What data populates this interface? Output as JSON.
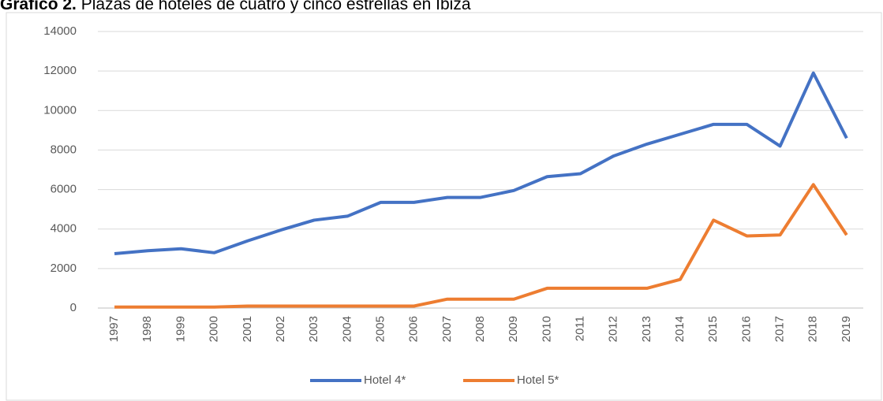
{
  "chart_data": {
    "type": "line",
    "title_prefix": "Gráfico 2.",
    "title": "Plazas de hoteles de cuatro y cinco estrellas en Ibiza",
    "categories": [
      "1997",
      "1998",
      "1999",
      "2000",
      "2001",
      "2002",
      "2003",
      "2004",
      "2005",
      "2006",
      "2007",
      "2008",
      "2009",
      "2010",
      "2011",
      "2012",
      "2013",
      "2014",
      "2015",
      "2016",
      "2017",
      "2018",
      "2019"
    ],
    "series": [
      {
        "name": "Hotel 4*",
        "color": "#4472c4",
        "values": [
          2750,
          2900,
          3000,
          2800,
          3400,
          3950,
          4450,
          4650,
          5350,
          5350,
          5600,
          5600,
          5950,
          6650,
          6800,
          7700,
          8300,
          8800,
          9300,
          9300,
          8200,
          11900,
          8600
        ]
      },
      {
        "name": "Hotel 5*",
        "color": "#ed7d31",
        "values": [
          50,
          50,
          50,
          50,
          100,
          100,
          100,
          100,
          100,
          100,
          450,
          450,
          450,
          1000,
          1000,
          1000,
          1000,
          1450,
          4450,
          3650,
          3700,
          6250,
          3700
        ]
      }
    ],
    "ylim": [
      0,
      14000
    ],
    "yticks": [
      0,
      2000,
      4000,
      6000,
      8000,
      10000,
      12000,
      14000
    ],
    "grid": true,
    "legend": "bottom"
  }
}
